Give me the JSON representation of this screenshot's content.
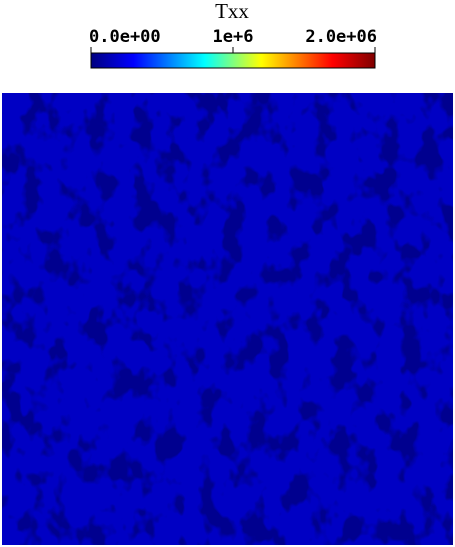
{
  "colorbar": {
    "title": "Txx",
    "range": [
      0,
      2000000
    ],
    "ticks": [
      {
        "value": 0,
        "label": "0.0e+00"
      },
      {
        "value": 1000000,
        "label": "1e+6"
      },
      {
        "value": 2000000,
        "label": "2.0e+06"
      }
    ]
  }
}
